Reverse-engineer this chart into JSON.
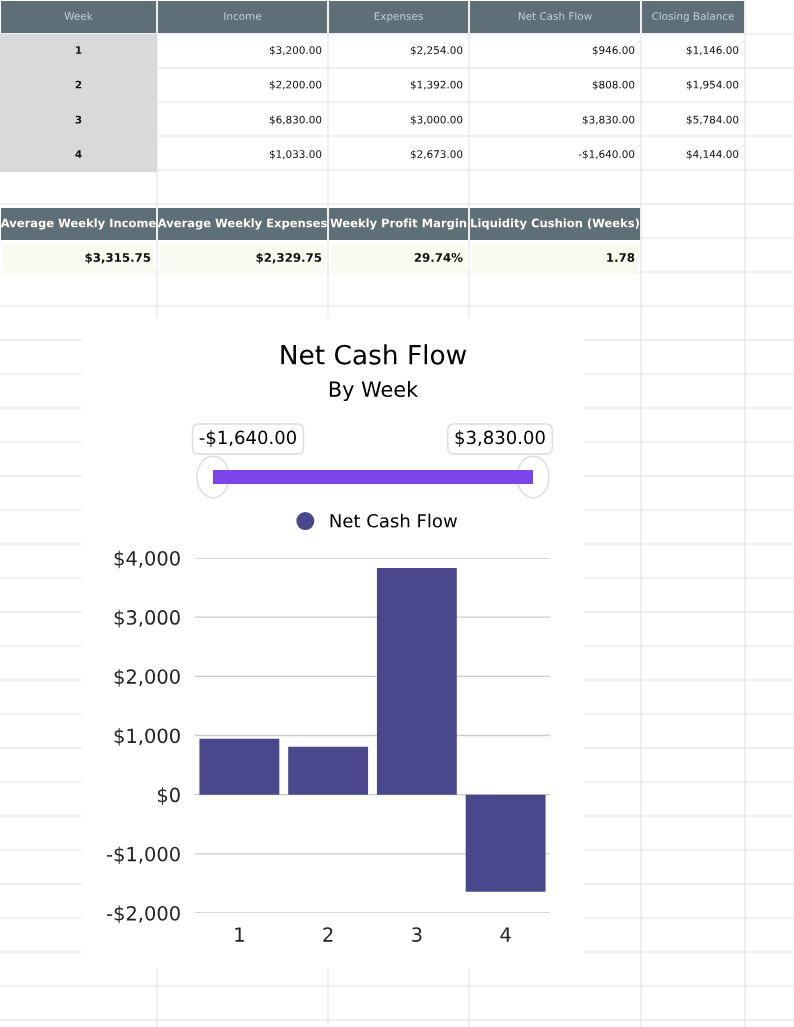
{
  "chart_data": {
    "type": "bar",
    "title": "Net Cash Flow",
    "subtitle": "By Week",
    "categories": [
      "1",
      "2",
      "3",
      "4"
    ],
    "series": [
      {
        "name": "Net Cash Flow",
        "color": "#4a488c",
        "values": [
          946,
          808,
          3830,
          -1640
        ]
      }
    ],
    "ylim": [
      -2000,
      4000
    ],
    "yticks": [
      {
        "value": -2000,
        "label": "-$2,000"
      },
      {
        "value": -1000,
        "label": "-$1,000"
      },
      {
        "value": 0,
        "label": "$0"
      },
      {
        "value": 1000,
        "label": "$1,000"
      },
      {
        "value": 2000,
        "label": "$2,000"
      },
      {
        "value": 3000,
        "label": "$3,000"
      },
      {
        "value": 4000,
        "label": "$4,000"
      }
    ],
    "grid": "y",
    "legend": "top",
    "annotations": [
      "-$1,640.00",
      "$3,830.00",
      "Week",
      "Income",
      "Expenses",
      "Net Cash Flow",
      "Closing Balance",
      "1",
      "$3,200.00",
      "$2,254.00",
      "$946.00",
      "$1,146.00",
      "2",
      "$2,200.00",
      "$1,392.00",
      "$808.00",
      "$1,954.00",
      "3",
      "$6,830.00",
      "$3,000.00",
      "$3,830.00",
      "$5,784.00",
      "4",
      "$1,033.00",
      "$2,673.00",
      "-$1,640.00",
      "$4,144.00",
      "Average Weekly Income",
      "Average Weekly Expenses",
      "Weekly Profit Margin",
      "Liquidity Cushion (Weeks)",
      "$3,315.75",
      "$2,329.75",
      "29.74%",
      "1.78"
    ]
  }
}
